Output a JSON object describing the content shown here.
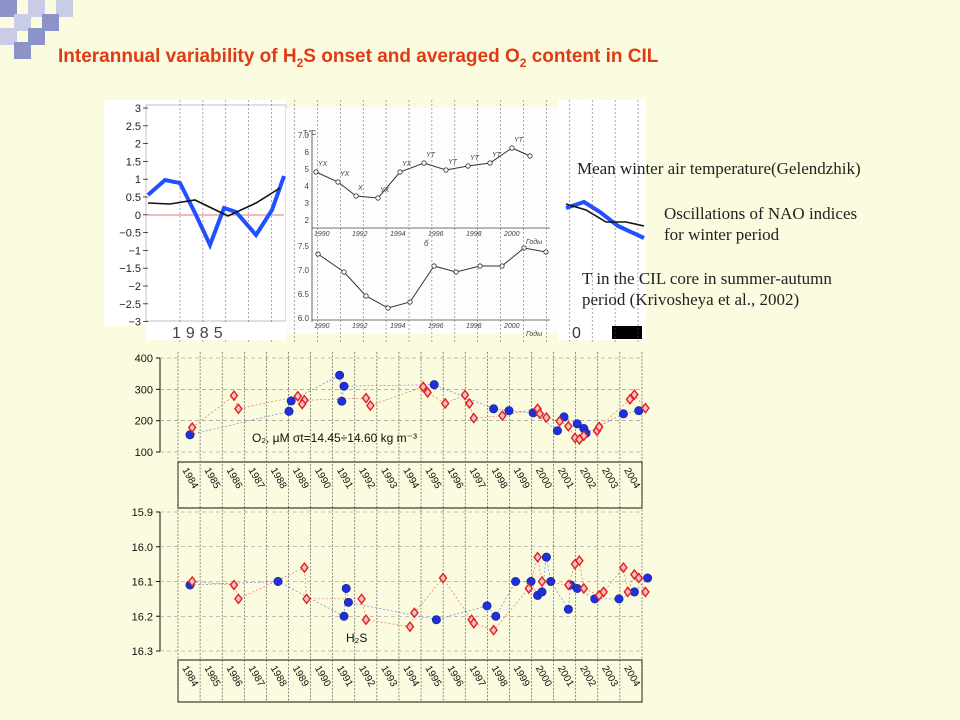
{
  "title": {
    "part1": "Interannual variability of H",
    "sub1": "2",
    "part2": "S onset and averaged O",
    "sub2": "2",
    "part3": " content in CIL"
  },
  "labels": {
    "air_temp": "Mean winter air temperature(Gelendzhik)",
    "nao_line1": "Oscillations of NAO indices",
    "nao_line2": "for winter period",
    "cil_line1": "T in the CIL core in summer-autumn",
    "cil_line2": "period (Krivosheya et al., 2002)"
  },
  "colors": {
    "title": "#e03a14",
    "background": "#fbfbdf",
    "deco_dark": "#8c93c8",
    "deco_light": "#c8cce6",
    "series_blue": "#1f2fe0",
    "series_red": "#e02020",
    "nao_blue": "#2050ff"
  },
  "top_panel": {
    "yticks": [
      "3",
      "2.5",
      "2",
      "1.5",
      "1",
      "0.5",
      "0",
      "−0.5",
      "−1",
      "−1.5",
      "−2",
      "−2.5",
      "−3"
    ],
    "year_fragment": "1985",
    "right_fragment": "0",
    "left_ticks_mid": [
      "7.0",
      "6",
      "5",
      "4",
      "3",
      "2"
    ],
    "left_ticks_low": [
      "7.5",
      "7.0",
      "6.5",
      "6.0"
    ],
    "mid_years_top": [
      "1990",
      "1992",
      "1994",
      "1996",
      "1998",
      "2000"
    ],
    "mid_years_bottom": [
      "1990",
      "1992",
      "1994",
      "1996",
      "1998",
      "2000"
    ],
    "mid_year_suffix": "Годы",
    "mid_marks": [
      "YX",
      "YX",
      "X",
      "YX",
      "YX",
      "YT",
      "YT",
      "YT",
      "YT",
      "YT"
    ],
    "mid_small_labels": [
      "T,°C",
      "б"
    ]
  },
  "chart_data": [
    {
      "type": "scatter",
      "title": "",
      "annotation": "O₂, µM  σt=14.45÷14.60 kg m⁻³",
      "ylim": [
        100,
        400
      ],
      "yticks": [
        400,
        300,
        200,
        100
      ],
      "years": [
        "1984",
        "1985",
        "1986",
        "1987",
        "1988",
        "1989",
        "1990",
        "1991",
        "1992",
        "1993",
        "1994",
        "1995",
        "1996",
        "1997",
        "1998",
        "1999",
        "2000",
        "2001",
        "2002",
        "2003",
        "2004"
      ],
      "xlim": [
        1984,
        2004
      ],
      "grid": true,
      "series": [
        {
          "marker": "circle",
          "color": "#1f2fe0",
          "x": [
            1984.0,
            1988.5,
            1988.6,
            1990.8,
            1991.0,
            1995.1,
            1997.8,
            1998.5,
            1999.6,
            2000.7,
            2001.0,
            2001.6,
            2001.9,
            2002.0,
            2003.7,
            2004.4,
            1990.9
          ],
          "y": [
            155,
            230,
            263,
            345,
            310,
            315,
            238,
            232,
            225,
            168,
            212,
            190,
            175,
            160,
            222,
            232,
            262
          ]
        },
        {
          "marker": "diamond",
          "color": "#e02020",
          "x": [
            1984.1,
            1986.0,
            1986.2,
            1988.9,
            1989.2,
            1989.1,
            1992.0,
            1992.2,
            1994.6,
            1994.8,
            1995.6,
            1996.5,
            1996.7,
            1996.9,
            1998.2,
            1999.8,
            1999.9,
            2000.2,
            2000.8,
            2001.2,
            2001.5,
            2001.7,
            2001.9,
            2002.5,
            2002.6,
            2004.0,
            2004.2,
            2004.7
          ],
          "y": [
            178,
            280,
            238,
            278,
            265,
            253,
            272,
            248,
            308,
            290,
            255,
            282,
            255,
            208,
            216,
            238,
            222,
            210,
            198,
            182,
            145,
            140,
            152,
            168,
            180,
            268,
            283,
            240
          ]
        }
      ]
    },
    {
      "type": "scatter",
      "title": "",
      "annotation": "H₂S",
      "ylim": [
        16.3,
        15.9
      ],
      "y_inverted": true,
      "yticks": [
        "15.9",
        "16.0",
        "16.1",
        "16.2",
        "16.3"
      ],
      "years": [
        "1984",
        "1985",
        "1986",
        "1987",
        "1988",
        "1989",
        "1990",
        "1991",
        "1992",
        "1993",
        "1994",
        "1995",
        "1996",
        "1997",
        "1998",
        "1999",
        "2000",
        "2001",
        "2002",
        "2003",
        "2004"
      ],
      "xlim": [
        1984,
        2004
      ],
      "grid": true,
      "series": [
        {
          "marker": "circle",
          "color": "#1f2fe0",
          "x": [
            1984.0,
            1988.0,
            1991.0,
            1991.2,
            1991.1,
            1995.2,
            1997.5,
            1997.9,
            1999.5,
            1999.8,
            2000.0,
            2000.2,
            2000.4,
            2001.2,
            2001.3,
            2001.6,
            2002.4,
            2003.5,
            2004.2,
            2004.8,
            1998.8
          ],
          "y": [
            16.11,
            16.1,
            16.2,
            16.16,
            16.12,
            16.21,
            16.17,
            16.2,
            16.1,
            16.14,
            16.13,
            16.03,
            16.1,
            16.18,
            16.11,
            16.12,
            16.15,
            16.15,
            16.13,
            16.09,
            16.1
          ]
        },
        {
          "marker": "diamond",
          "color": "#e02020",
          "x": [
            1984.1,
            1986.0,
            1986.2,
            1989.2,
            1989.3,
            1991.8,
            1992.0,
            1994.0,
            1994.2,
            1995.5,
            1996.8,
            1996.9,
            1997.8,
            1999.4,
            1999.8,
            2000.0,
            2001.2,
            2001.5,
            2001.7,
            2001.9,
            2002.6,
            2002.8,
            2003.7,
            2003.9,
            2004.2,
            2004.4,
            2004.7
          ],
          "y": [
            16.1,
            16.11,
            16.15,
            16.06,
            16.15,
            16.15,
            16.21,
            16.23,
            16.19,
            16.09,
            16.21,
            16.22,
            16.24,
            16.12,
            16.03,
            16.1,
            16.11,
            16.05,
            16.04,
            16.12,
            16.14,
            16.13,
            16.06,
            16.13,
            16.08,
            16.09,
            16.13
          ]
        }
      ]
    }
  ]
}
